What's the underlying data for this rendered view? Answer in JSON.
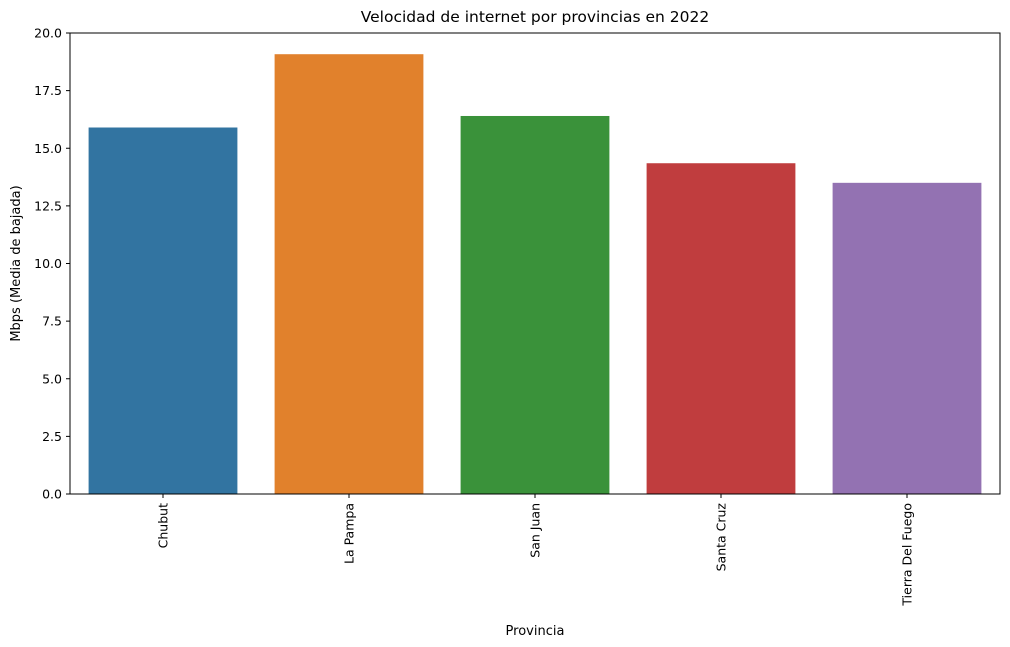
{
  "chart_data": {
    "type": "bar",
    "title": "Velocidad de internet por provincias en 2022",
    "xlabel": "Provincia",
    "ylabel": "Mbps (Media de bajada)",
    "categories": [
      "Chubut",
      "La Pampa",
      "San Juan",
      "Santa Cruz",
      "Tierra Del Fuego"
    ],
    "values": [
      15.9,
      19.08,
      16.4,
      14.35,
      13.5
    ],
    "colors": [
      "#3274a1",
      "#e1812c",
      "#3a923a",
      "#c03d3e",
      "#9372b2"
    ],
    "ylim": [
      0,
      20
    ],
    "yticks": [
      "0.0",
      "2.5",
      "5.0",
      "7.5",
      "10.0",
      "12.5",
      "15.0",
      "17.5",
      "20.0"
    ],
    "grid": false,
    "legend": false
  }
}
